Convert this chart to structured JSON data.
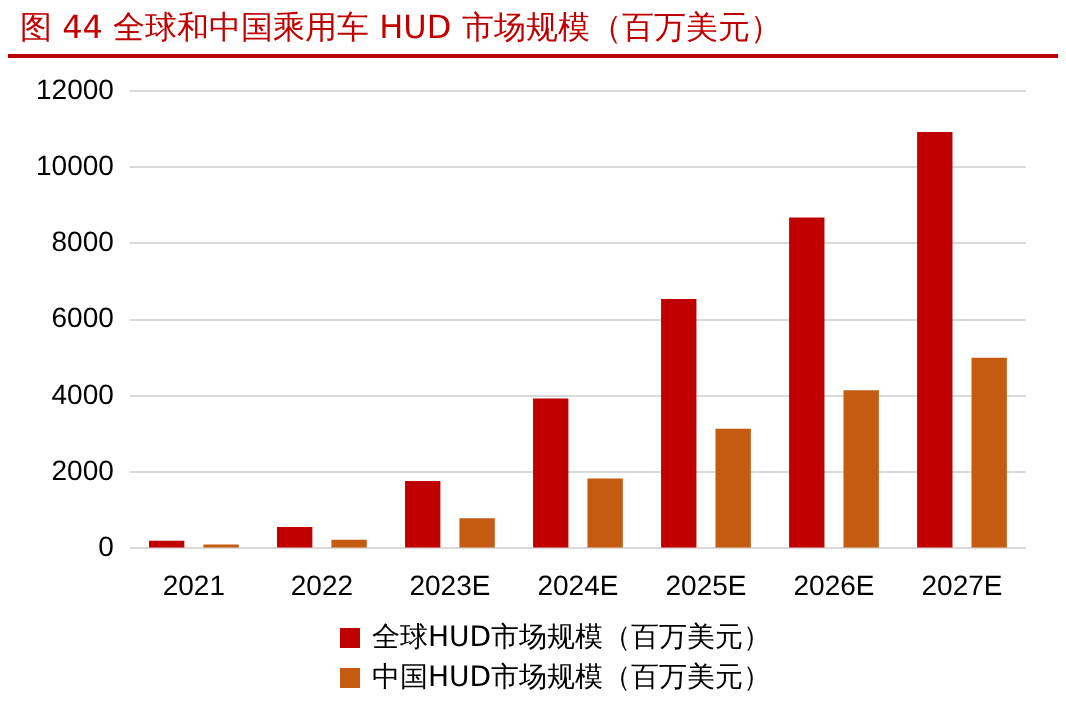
{
  "chart_data": {
    "type": "bar",
    "title": "图 44 全球和中国乘用车 HUD 市场规模（百万美元）",
    "categories": [
      "2021",
      "2022",
      "2023E",
      "2024E",
      "2025E",
      "2026E",
      "2027E"
    ],
    "series": [
      {
        "name": "全球HUD市场规模（百万美元）",
        "color": "#c00000",
        "values": [
          200,
          560,
          1770,
          3930,
          6540,
          8680,
          10920
        ]
      },
      {
        "name": "中国HUD市场规模（百万美元）",
        "color": "#c55a11",
        "values": [
          100,
          230,
          790,
          1830,
          3140,
          4150,
          5000
        ]
      }
    ],
    "ylim": [
      0,
      12000
    ],
    "yticks": [
      0,
      2000,
      4000,
      6000,
      8000,
      10000,
      12000
    ],
    "grid": "y",
    "legend": "bottom"
  }
}
